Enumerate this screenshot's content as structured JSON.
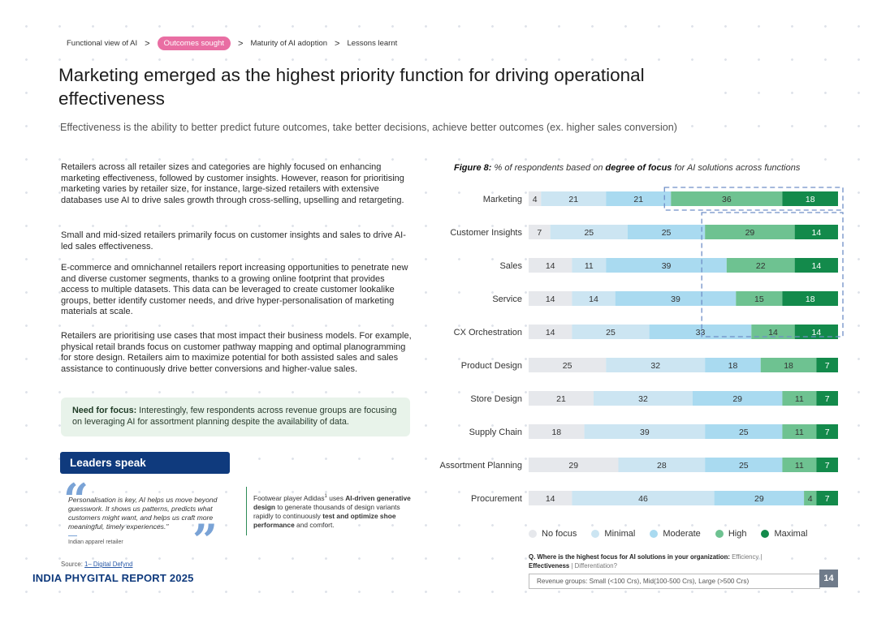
{
  "breadcrumb": {
    "items": [
      "Functional view of AI",
      "Outcomes sought",
      "Maturity of AI adoption",
      "Lessons learnt"
    ],
    "active_index": 1,
    "separator": ">"
  },
  "title": "Marketing emerged as the highest priority function for driving operational effectiveness",
  "subtitle": "Effectiveness is the ability to better predict future outcomes, take better decisions, achieve better outcomes (ex. higher sales conversion)",
  "paragraphs": [
    "Retailers across all retailer sizes and categories are highly focused on enhancing marketing effectiveness, followed by customer insights. However, reason for prioritising marketing varies by retailer size, for instance, large-sized retailers with extensive databases use AI to drive sales growth through cross-selling, upselling and retargeting.",
    "Small and mid-sized retailers primarily focus on customer insights and sales to drive AI-led sales effectiveness.",
    "E-commerce and omnichannel retailers report increasing opportunities to penetrate new and diverse customer segments, thanks to a growing online footprint that provides access to multiple datasets. This data can be leveraged to create customer lookalike groups, better identify customer needs, and drive hyper-personalisation of marketing materials at scale.",
    "Retailers are prioritising use cases that most impact their business models. For example, physical retail brands focus on customer pathway mapping and optimal planogramming for store design. Retailers aim to maximize potential for both assisted sales and sales assistance to continuously drive better conversions and higher-value sales."
  ],
  "callout": {
    "label": "Need for focus:",
    "text": " Interestingly, few respondents across revenue groups are focusing on leveraging AI for assortment planning despite the availability of data."
  },
  "leaders": {
    "heading": "Leaders speak",
    "quote": "Personalisation is key, AI helps us move beyond guesswork. It shows us patterns, predicts what customers might want, and helps us craft more meaningful, timely experiences.\"",
    "attribution": "Indian apparel retailer",
    "open_mark": "“",
    "close_mark": "”",
    "adidas": {
      "t1": "Footwear player Adidas",
      "sup": "1",
      "t2": " uses ",
      "b1": "AI-driven generative design",
      "t3": " to generate thousands of design variants rapidly to continuously ",
      "b2": "test and optimize shoe performance",
      "t4": " and comfort."
    }
  },
  "source": {
    "label": "Source: ",
    "link": "1– Digital Defynd"
  },
  "report_name": "INDIA PHYGITAL REPORT 2025",
  "figure": {
    "label": "Figure 8:",
    "t1": " % of respondents based on ",
    "b1": "degree of focus",
    "t2": " for AI solutions across functions"
  },
  "chart_data": {
    "type": "bar",
    "orientation": "horizontal",
    "stacked": true,
    "title": "Figure 8: % of respondents based on degree of focus for AI solutions across functions",
    "categories": [
      "Marketing",
      "Customer Insights",
      "Sales",
      "Service",
      "CX Orchestration",
      "Product Design",
      "Store Design",
      "Supply Chain",
      "Assortment Planning",
      "Procurement"
    ],
    "series": [
      {
        "name": "No focus",
        "color": "#e6e8ec",
        "values": [
          4,
          7,
          14,
          14,
          14,
          25,
          21,
          18,
          29,
          14
        ]
      },
      {
        "name": "Minimal",
        "color": "#cce5f2",
        "values": [
          21,
          25,
          11,
          14,
          25,
          32,
          32,
          39,
          28,
          46
        ]
      },
      {
        "name": "Moderate",
        "color": "#a9daf0",
        "values": [
          21,
          25,
          39,
          39,
          33,
          18,
          29,
          25,
          25,
          29
        ]
      },
      {
        "name": "High",
        "color": "#6ec291",
        "values": [
          36,
          29,
          22,
          15,
          14,
          18,
          11,
          11,
          11,
          4
        ]
      },
      {
        "name": "Maximal",
        "color": "#138a4b",
        "values": [
          18,
          14,
          14,
          18,
          14,
          7,
          7,
          7,
          7,
          7
        ]
      }
    ],
    "xlim": [
      0,
      100
    ],
    "legend": "bottom",
    "highlight_note": "dashed boxes around High+Maximal for Marketing and Customer Insights–Service"
  },
  "question": {
    "text": "Q. Where is the highest focus for AI solutions in your organization: ",
    "opt1": "Efficiency",
    "sep": " | ",
    "opt2": "Effectiveness",
    "sep2": " | ",
    "opt3": "Differentiation?"
  },
  "revenue_groups": "Revenue groups: Small (<100 Crs), Mid(100-500 Crs), Large (>500 Crs)",
  "page_number": "14"
}
